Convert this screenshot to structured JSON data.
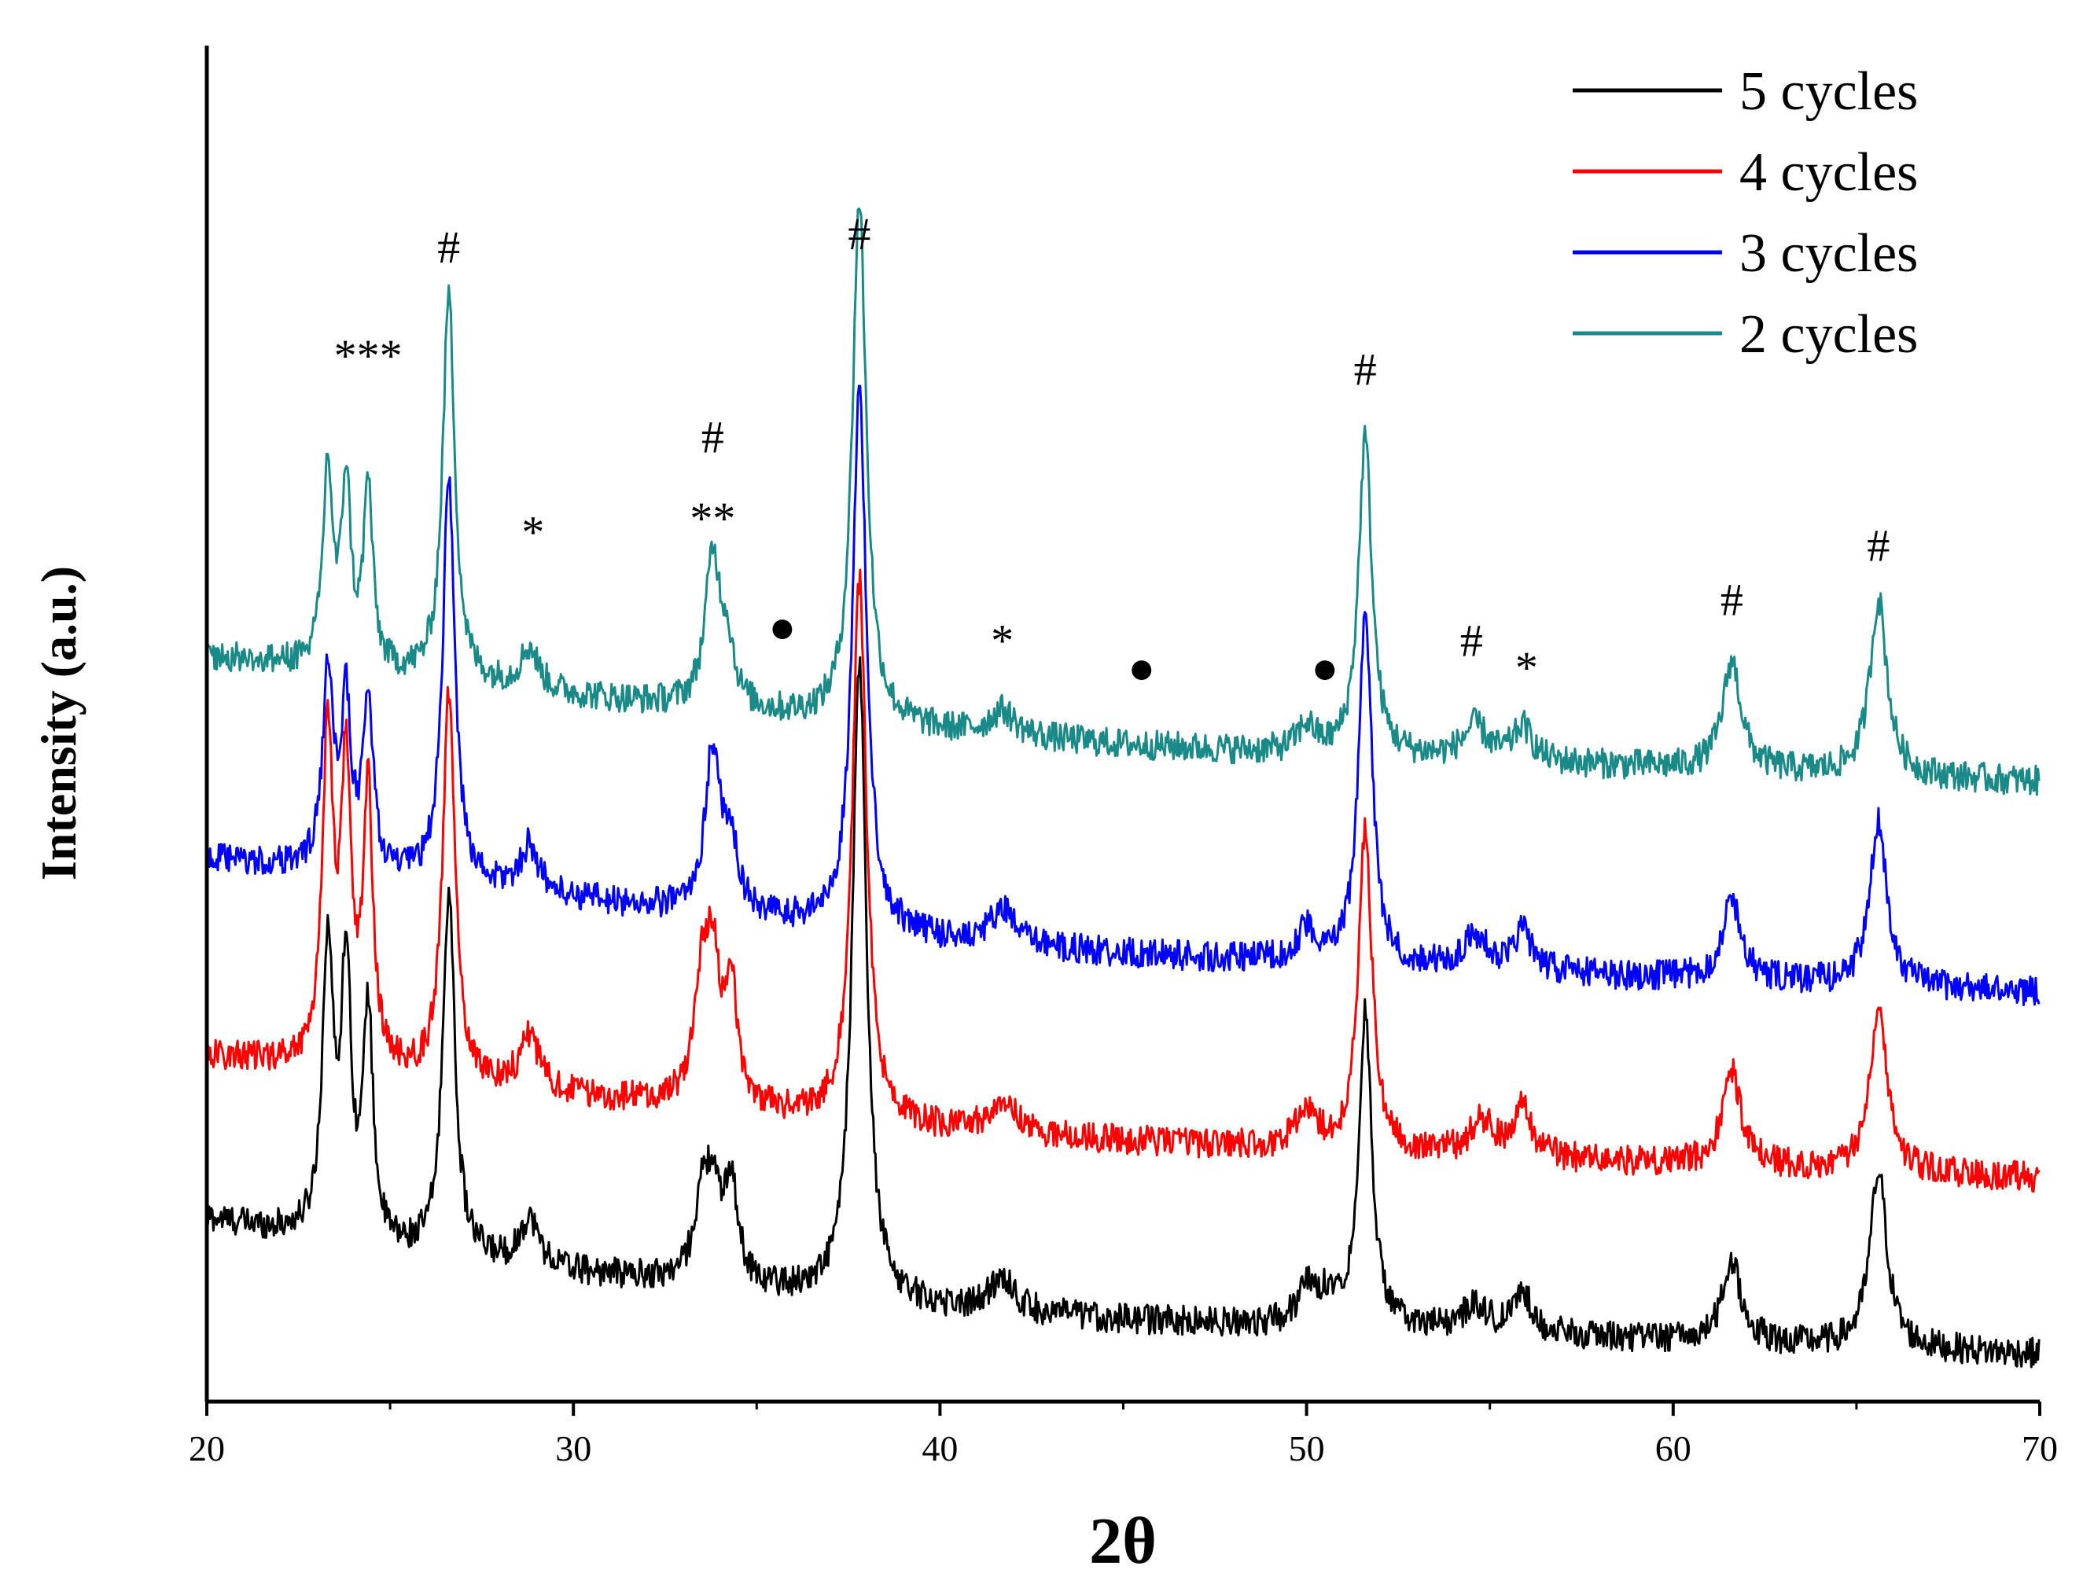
{
  "chart_data": {
    "type": "line",
    "title": "",
    "xlabel": "2θ",
    "ylabel": "Intensity (a.u.)",
    "xlim": [
      20,
      70
    ],
    "xticks": [
      20,
      30,
      40,
      50,
      60,
      70
    ],
    "xtick_labels": [
      "20",
      "30",
      "40",
      "50",
      "60",
      "70"
    ],
    "ylim": [
      0,
      1
    ],
    "yticks_shown": false,
    "grid": false,
    "legend_position": "top-right",
    "series": [
      {
        "name": "5 cycles",
        "color": "#000000",
        "offset": 0.0,
        "baseline": [
          [
            20,
            0.135
          ],
          [
            25,
            0.11
          ],
          [
            30,
            0.095
          ],
          [
            35,
            0.082
          ],
          [
            40,
            0.068
          ],
          [
            45,
            0.06
          ],
          [
            50,
            0.055
          ],
          [
            55,
            0.05
          ],
          [
            60,
            0.045
          ],
          [
            65,
            0.04
          ],
          [
            70,
            0.035
          ]
        ],
        "peaks": [
          [
            23.3,
            0.215,
            0.18
          ],
          [
            23.8,
            0.2,
            0.16
          ],
          [
            24.4,
            0.17,
            0.16
          ],
          [
            26.6,
            0.27,
            0.2
          ],
          [
            28.8,
            0.035,
            0.3
          ],
          [
            33.5,
            0.055,
            0.25
          ],
          [
            33.8,
            0.06,
            0.22
          ],
          [
            34.3,
            0.075,
            0.22
          ],
          [
            37.8,
            0.47,
            0.23
          ],
          [
            41.7,
            0.025,
            0.4
          ],
          [
            50.0,
            0.025,
            0.3
          ],
          [
            50.6,
            0.02,
            0.3
          ],
          [
            51.6,
            0.23,
            0.22
          ],
          [
            54.6,
            0.02,
            0.4
          ],
          [
            55.9,
            0.03,
            0.3
          ],
          [
            61.6,
            0.06,
            0.3
          ],
          [
            65.6,
            0.13,
            0.28
          ]
        ]
      },
      {
        "name": "4 cycles",
        "color": "#ff0000",
        "offset": 0.13,
        "baseline": [
          [
            20,
            0.125
          ],
          [
            25,
            0.11
          ],
          [
            30,
            0.095
          ],
          [
            35,
            0.082
          ],
          [
            40,
            0.07
          ],
          [
            45,
            0.062
          ],
          [
            50,
            0.056
          ],
          [
            55,
            0.05
          ],
          [
            60,
            0.045
          ],
          [
            65,
            0.04
          ],
          [
            70,
            0.035
          ]
        ],
        "peaks": [
          [
            23.3,
            0.245,
            0.18
          ],
          [
            23.8,
            0.215,
            0.16
          ],
          [
            24.4,
            0.2,
            0.16
          ],
          [
            26.6,
            0.285,
            0.2
          ],
          [
            28.8,
            0.04,
            0.3
          ],
          [
            33.5,
            0.085,
            0.25
          ],
          [
            33.8,
            0.09,
            0.22
          ],
          [
            34.3,
            0.085,
            0.22
          ],
          [
            37.8,
            0.4,
            0.23
          ],
          [
            41.7,
            0.025,
            0.4
          ],
          [
            50.0,
            0.03,
            0.3
          ],
          [
            51.6,
            0.24,
            0.22
          ],
          [
            54.8,
            0.025,
            0.4
          ],
          [
            55.9,
            0.035,
            0.3
          ],
          [
            61.6,
            0.07,
            0.3
          ],
          [
            65.6,
            0.125,
            0.28
          ]
        ]
      },
      {
        "name": "3 cycles",
        "color": "#0000ff",
        "offset": 0.26,
        "baseline": [
          [
            20,
            0.14
          ],
          [
            25,
            0.125
          ],
          [
            30,
            0.11
          ],
          [
            35,
            0.095
          ],
          [
            40,
            0.08
          ],
          [
            45,
            0.07
          ],
          [
            50,
            0.063
          ],
          [
            55,
            0.057
          ],
          [
            60,
            0.052
          ],
          [
            65,
            0.047
          ],
          [
            70,
            0.042
          ]
        ],
        "peaks": [
          [
            23.3,
            0.14,
            0.18
          ],
          [
            23.8,
            0.12,
            0.16
          ],
          [
            24.4,
            0.13,
            0.16
          ],
          [
            26.6,
            0.3,
            0.2
          ],
          [
            28.8,
            0.035,
            0.3
          ],
          [
            33.8,
            0.12,
            0.25
          ],
          [
            34.3,
            0.05,
            0.22
          ],
          [
            37.8,
            0.4,
            0.23
          ],
          [
            41.7,
            0.025,
            0.4
          ],
          [
            50.0,
            0.025,
            0.3
          ],
          [
            51.6,
            0.26,
            0.22
          ],
          [
            54.6,
            0.025,
            0.4
          ],
          [
            55.9,
            0.03,
            0.3
          ],
          [
            61.6,
            0.06,
            0.3
          ],
          [
            65.6,
            0.12,
            0.28
          ]
        ]
      },
      {
        "name": "2 cycles",
        "color": "#1a8a88",
        "offset": 0.42,
        "baseline": [
          [
            20,
            0.13
          ],
          [
            25,
            0.115
          ],
          [
            30,
            0.1
          ],
          [
            35,
            0.087
          ],
          [
            40,
            0.074
          ],
          [
            45,
            0.064
          ],
          [
            50,
            0.057
          ],
          [
            55,
            0.052
          ],
          [
            60,
            0.047
          ],
          [
            65,
            0.042
          ],
          [
            70,
            0.037
          ]
        ],
        "peaks": [
          [
            23.3,
            0.145,
            0.16
          ],
          [
            23.8,
            0.135,
            0.15
          ],
          [
            24.4,
            0.135,
            0.15
          ],
          [
            26.6,
            0.285,
            0.2
          ],
          [
            28.8,
            0.03,
            0.3
          ],
          [
            33.8,
            0.11,
            0.25
          ],
          [
            34.2,
            0.04,
            0.22
          ],
          [
            37.8,
            0.385,
            0.23
          ],
          [
            41.7,
            0.018,
            0.4
          ],
          [
            50.0,
            0.02,
            0.3
          ],
          [
            51.6,
            0.235,
            0.22
          ],
          [
            54.6,
            0.025,
            0.4
          ],
          [
            55.9,
            0.025,
            0.3
          ],
          [
            61.6,
            0.08,
            0.3
          ],
          [
            65.6,
            0.13,
            0.28
          ]
        ]
      }
    ],
    "annotations": [
      {
        "text": "***",
        "x": 24.4,
        "y": 0.76
      },
      {
        "text": "#",
        "x": 26.6,
        "y": 0.84
      },
      {
        "text": "*",
        "x": 28.9,
        "y": 0.63
      },
      {
        "text": "#",
        "x": 33.8,
        "y": 0.7
      },
      {
        "text": "**",
        "x": 33.8,
        "y": 0.64
      },
      {
        "text": "●",
        "x": 35.7,
        "y": 0.56
      },
      {
        "text": "#",
        "x": 37.8,
        "y": 0.85
      },
      {
        "text": "*",
        "x": 41.7,
        "y": 0.55
      },
      {
        "text": "●",
        "x": 45.5,
        "y": 0.53
      },
      {
        "text": "●",
        "x": 50.5,
        "y": 0.53
      },
      {
        "text": "#",
        "x": 51.6,
        "y": 0.75
      },
      {
        "text": "#",
        "x": 54.5,
        "y": 0.55
      },
      {
        "text": "*",
        "x": 56.0,
        "y": 0.53
      },
      {
        "text": "#",
        "x": 61.6,
        "y": 0.58
      },
      {
        "text": "#",
        "x": 65.6,
        "y": 0.62
      }
    ]
  }
}
